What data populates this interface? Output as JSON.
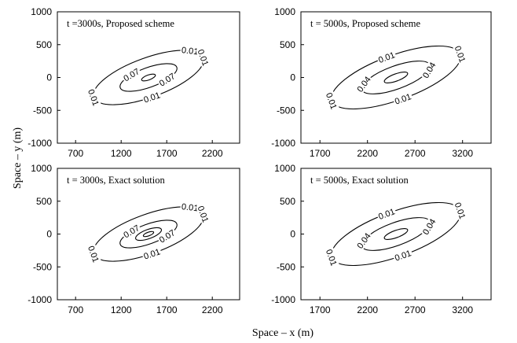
{
  "xlabel": "Space – x (m)",
  "ylabel": "Space – y (m)",
  "chart_data": [
    {
      "type": "contour",
      "title": "t =3000s, Proposed scheme",
      "xlim": [
        500,
        2500
      ],
      "ylim": [
        -1000,
        1000
      ],
      "xticks": [
        "700",
        "1200",
        "1700",
        "2200"
      ],
      "yticks": [
        "1000",
        "500",
        "0",
        "-500",
        "-1000"
      ],
      "center": [
        1500,
        0
      ],
      "contours": [
        {
          "level": "0.01",
          "rx": 640,
          "ry": 300,
          "label_positions": [
            0.6,
            3.14,
            4.65,
            0
          ]
        },
        {
          "level": "0.07",
          "rx": 330,
          "ry": 150,
          "label_positions": [
            2.1,
            5.3
          ]
        },
        {
          "level": "",
          "rx": 80,
          "ry": 38,
          "label_positions": []
        }
      ]
    },
    {
      "type": "contour",
      "title": "t = 5000s, Proposed scheme",
      "xlim": [
        1500,
        3500
      ],
      "ylim": [
        -1000,
        1000
      ],
      "xticks": [
        "1700",
        "2200",
        "2700",
        "3200"
      ],
      "yticks": [
        "1000",
        "500",
        "0",
        "-500",
        "-1000"
      ],
      "center": [
        2500,
        0
      ],
      "contours": [
        {
          "level": "0.01",
          "rx": 720,
          "ry": 340,
          "label_positions": [
            1.6,
            3.14,
            4.7,
            0
          ]
        },
        {
          "level": "0.04",
          "rx": 380,
          "ry": 175,
          "label_positions": [
            2.7,
            5.9
          ]
        },
        {
          "level": "",
          "rx": 130,
          "ry": 55,
          "label_positions": []
        }
      ]
    },
    {
      "type": "contour",
      "title": "t = 3000s, Exact solution",
      "xlim": [
        500,
        2500
      ],
      "ylim": [
        -1000,
        1000
      ],
      "xticks": [
        "700",
        "1200",
        "1700",
        "2200"
      ],
      "yticks": [
        "1000",
        "500",
        "0",
        "-500",
        "-1000"
      ],
      "center": [
        1500,
        0
      ],
      "contours": [
        {
          "level": "0.01",
          "rx": 640,
          "ry": 300,
          "label_positions": [
            0.6,
            3.14,
            4.65,
            0
          ]
        },
        {
          "level": "0.07",
          "rx": 330,
          "ry": 150,
          "label_positions": [
            2.1,
            5.3
          ]
        },
        {
          "level": "",
          "rx": 150,
          "ry": 70,
          "label_positions": []
        },
        {
          "level": "",
          "rx": 60,
          "ry": 28,
          "label_positions": []
        }
      ]
    },
    {
      "type": "contour",
      "title": "t = 5000s, Exact solution",
      "xlim": [
        1500,
        3500
      ],
      "ylim": [
        -1000,
        1000
      ],
      "xticks": [
        "1700",
        "2200",
        "2700",
        "3200"
      ],
      "yticks": [
        "1000",
        "500",
        "0",
        "-500",
        "-1000"
      ],
      "center": [
        2500,
        0
      ],
      "contours": [
        {
          "level": "0.01",
          "rx": 720,
          "ry": 340,
          "label_positions": [
            1.6,
            3.14,
            4.7,
            0
          ]
        },
        {
          "level": "0.04",
          "rx": 380,
          "ry": 175,
          "label_positions": [
            2.7,
            5.9
          ]
        },
        {
          "level": "",
          "rx": 130,
          "ry": 55,
          "label_positions": []
        }
      ]
    }
  ]
}
